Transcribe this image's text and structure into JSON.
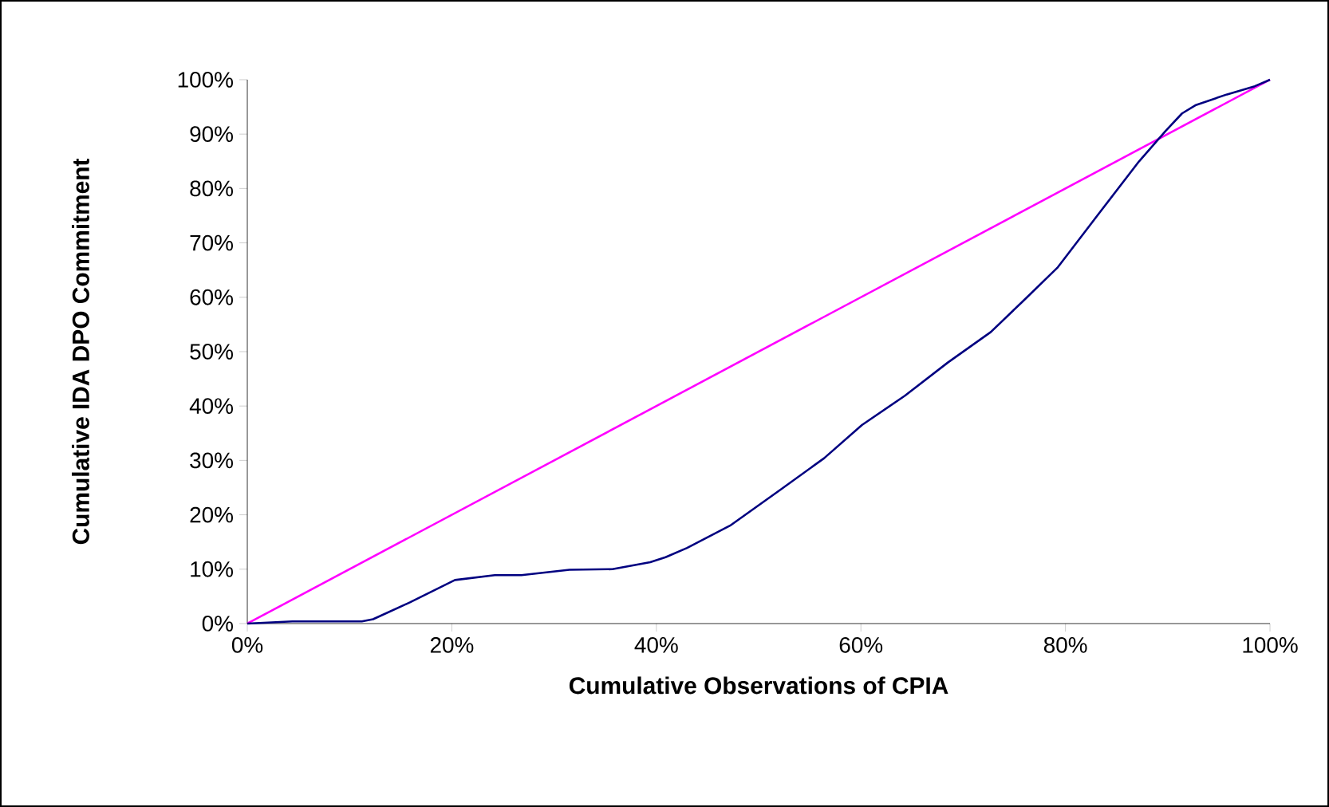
{
  "chart_data": {
    "type": "line",
    "xlabel": "Cumulative Observations of CPIA",
    "ylabel": "Cumulative IDA DPO Commitment",
    "xlim": [
      0,
      100
    ],
    "ylim": [
      0,
      100
    ],
    "xticks": [
      {
        "value": 0,
        "label": "0%"
      },
      {
        "value": 20,
        "label": "20%"
      },
      {
        "value": 40,
        "label": "40%"
      },
      {
        "value": 60,
        "label": "60%"
      },
      {
        "value": 80,
        "label": "80%"
      },
      {
        "value": 100,
        "label": "100%"
      }
    ],
    "yticks": [
      {
        "value": 0,
        "label": "0%"
      },
      {
        "value": 10,
        "label": "10%"
      },
      {
        "value": 20,
        "label": "20%"
      },
      {
        "value": 30,
        "label": "30%"
      },
      {
        "value": 40,
        "label": "40%"
      },
      {
        "value": 50,
        "label": "50%"
      },
      {
        "value": 60,
        "label": "60%"
      },
      {
        "value": 70,
        "label": "70%"
      },
      {
        "value": 80,
        "label": "80%"
      },
      {
        "value": 90,
        "label": "90%"
      },
      {
        "value": 100,
        "label": "100%"
      }
    ],
    "series": [
      {
        "color": "#ff00ff",
        "x": [
          0,
          100
        ],
        "values": [
          0,
          100
        ]
      },
      {
        "color": "#000080",
        "x": [
          0,
          4.4,
          11.2,
          12.3,
          15.9,
          20.3,
          24.2,
          26.8,
          31.5,
          35.7,
          39.4,
          40.9,
          43,
          47.2,
          52.2,
          56.4,
          60.1,
          64.3,
          68.5,
          72.7,
          75.8,
          79.2,
          83.6,
          87.2,
          89.8,
          91.4,
          92.7,
          95.8,
          98.5,
          100
        ],
        "values": [
          0,
          0.4,
          0.4,
          0.8,
          3.9,
          8.0,
          8.9,
          8.9,
          9.9,
          10.0,
          11.3,
          12.2,
          13.9,
          18.0,
          24.7,
          30.4,
          36.5,
          41.9,
          48.0,
          53.6,
          59.2,
          65.4,
          76.2,
          85.0,
          90.6,
          93.8,
          95.3,
          97.3,
          98.8,
          100
        ]
      }
    ]
  }
}
